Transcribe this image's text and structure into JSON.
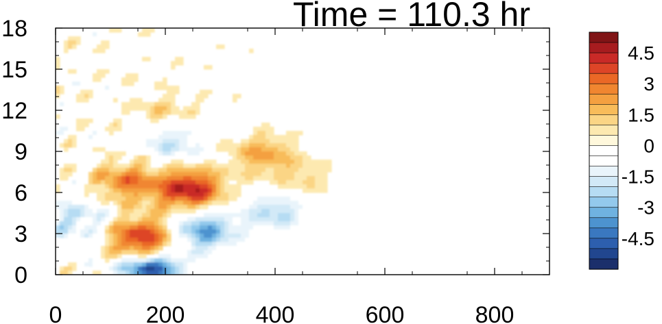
{
  "chart_data": {
    "type": "heatmap",
    "title": "Time = 110.3 hr",
    "xlabel": "",
    "ylabel": "",
    "xlim": [
      0,
      900
    ],
    "ylim": [
      0,
      18
    ],
    "x_ticks": [
      0,
      200,
      400,
      600,
      800
    ],
    "x_tick_labels": [
      "0",
      "200",
      "400",
      "600",
      "800"
    ],
    "y_ticks": [
      0,
      3,
      6,
      9,
      12,
      15,
      18
    ],
    "y_tick_labels": [
      "0",
      "3",
      "6",
      "9",
      "12",
      "15",
      "18"
    ],
    "colorbar": {
      "levels": [
        -5.5,
        -5,
        -4.5,
        -4,
        -3.5,
        -3,
        -2.5,
        -2,
        -1.5,
        -1,
        -0.5,
        0,
        0.5,
        1,
        1.5,
        2,
        2.5,
        3,
        3.5,
        4,
        4.5,
        5,
        5.5
      ],
      "colors": [
        "#1b2f6b",
        "#21468f",
        "#2d5fae",
        "#3a78c0",
        "#4d93cf",
        "#6fb2e0",
        "#93c9ec",
        "#b6dcf3",
        "#d2e9f7",
        "#e9f4fb",
        "#ffffff",
        "#ffffff",
        "#fff8dc",
        "#fde9b0",
        "#fbd585",
        "#f8bc5a",
        "#f4a040",
        "#f08630",
        "#ea6826",
        "#dd4527",
        "#c92a27",
        "#a71c1f",
        "#801416"
      ],
      "labels": [
        "4.5",
        "3",
        "1.5",
        "0",
        "-1.5",
        "-3",
        "-4.5"
      ],
      "label_values": [
        4.5,
        3,
        1.5,
        0,
        -1.5,
        -3,
        -4.5
      ]
    },
    "features": [
      {
        "kind": "positive",
        "x": 130,
        "y": 6.8,
        "amp": 2.8
      },
      {
        "kind": "positive",
        "x": 245,
        "y": 6.2,
        "amp": 4.6
      },
      {
        "kind": "positive",
        "x": 155,
        "y": 2.7,
        "amp": 4.0
      },
      {
        "kind": "positive",
        "x": 375,
        "y": 8.8,
        "amp": 2.0
      },
      {
        "kind": "positive",
        "x": 200,
        "y": 11.8,
        "amp": 1.3
      },
      {
        "kind": "positive",
        "x": 450,
        "y": 7.0,
        "amp": 1.1
      },
      {
        "kind": "negative",
        "x": 270,
        "y": 3.2,
        "amp": -3.6
      },
      {
        "kind": "negative",
        "x": 175,
        "y": 0.5,
        "amp": -5.2
      },
      {
        "kind": "negative",
        "x": 400,
        "y": 4.6,
        "amp": -2.2
      },
      {
        "kind": "negative",
        "x": 215,
        "y": 9.8,
        "amp": -2.0
      },
      {
        "kind": "negative",
        "x": 40,
        "y": 4.0,
        "amp": -2.0
      },
      {
        "kind": "negative",
        "x": 650,
        "y": 4.6,
        "amp": -0.8
      }
    ]
  }
}
